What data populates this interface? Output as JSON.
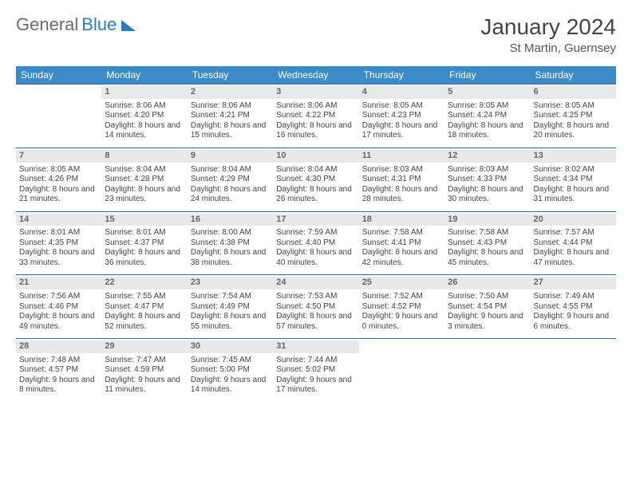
{
  "logo": {
    "text1": "General",
    "text2": "Blue"
  },
  "title": "January 2024",
  "location": "St Martin, Guernsey",
  "colors": {
    "header_bg": "#3b8bc9",
    "row_border": "#2a6ca8",
    "daynum_bg": "#e9e9e9",
    "logo_gray": "#6b6b6b",
    "logo_blue": "#2a7bbf"
  },
  "day_names": [
    "Sunday",
    "Monday",
    "Tuesday",
    "Wednesday",
    "Thursday",
    "Friday",
    "Saturday"
  ],
  "weeks": [
    [
      {
        "day": "",
        "sunrise": "",
        "sunset": "",
        "daylight": ""
      },
      {
        "day": "1",
        "sunrise": "Sunrise: 8:06 AM",
        "sunset": "Sunset: 4:20 PM",
        "daylight": "Daylight: 8 hours and 14 minutes."
      },
      {
        "day": "2",
        "sunrise": "Sunrise: 8:06 AM",
        "sunset": "Sunset: 4:21 PM",
        "daylight": "Daylight: 8 hours and 15 minutes."
      },
      {
        "day": "3",
        "sunrise": "Sunrise: 8:06 AM",
        "sunset": "Sunset: 4:22 PM",
        "daylight": "Daylight: 8 hours and 16 minutes."
      },
      {
        "day": "4",
        "sunrise": "Sunrise: 8:05 AM",
        "sunset": "Sunset: 4:23 PM",
        "daylight": "Daylight: 8 hours and 17 minutes."
      },
      {
        "day": "5",
        "sunrise": "Sunrise: 8:05 AM",
        "sunset": "Sunset: 4:24 PM",
        "daylight": "Daylight: 8 hours and 18 minutes."
      },
      {
        "day": "6",
        "sunrise": "Sunrise: 8:05 AM",
        "sunset": "Sunset: 4:25 PM",
        "daylight": "Daylight: 8 hours and 20 minutes."
      }
    ],
    [
      {
        "day": "7",
        "sunrise": "Sunrise: 8:05 AM",
        "sunset": "Sunset: 4:26 PM",
        "daylight": "Daylight: 8 hours and 21 minutes."
      },
      {
        "day": "8",
        "sunrise": "Sunrise: 8:04 AM",
        "sunset": "Sunset: 4:28 PM",
        "daylight": "Daylight: 8 hours and 23 minutes."
      },
      {
        "day": "9",
        "sunrise": "Sunrise: 8:04 AM",
        "sunset": "Sunset: 4:29 PM",
        "daylight": "Daylight: 8 hours and 24 minutes."
      },
      {
        "day": "10",
        "sunrise": "Sunrise: 8:04 AM",
        "sunset": "Sunset: 4:30 PM",
        "daylight": "Daylight: 8 hours and 26 minutes."
      },
      {
        "day": "11",
        "sunrise": "Sunrise: 8:03 AM",
        "sunset": "Sunset: 4:31 PM",
        "daylight": "Daylight: 8 hours and 28 minutes."
      },
      {
        "day": "12",
        "sunrise": "Sunrise: 8:03 AM",
        "sunset": "Sunset: 4:33 PM",
        "daylight": "Daylight: 8 hours and 30 minutes."
      },
      {
        "day": "13",
        "sunrise": "Sunrise: 8:02 AM",
        "sunset": "Sunset: 4:34 PM",
        "daylight": "Daylight: 8 hours and 31 minutes."
      }
    ],
    [
      {
        "day": "14",
        "sunrise": "Sunrise: 8:01 AM",
        "sunset": "Sunset: 4:35 PM",
        "daylight": "Daylight: 8 hours and 33 minutes."
      },
      {
        "day": "15",
        "sunrise": "Sunrise: 8:01 AM",
        "sunset": "Sunset: 4:37 PM",
        "daylight": "Daylight: 8 hours and 36 minutes."
      },
      {
        "day": "16",
        "sunrise": "Sunrise: 8:00 AM",
        "sunset": "Sunset: 4:38 PM",
        "daylight": "Daylight: 8 hours and 38 minutes."
      },
      {
        "day": "17",
        "sunrise": "Sunrise: 7:59 AM",
        "sunset": "Sunset: 4:40 PM",
        "daylight": "Daylight: 8 hours and 40 minutes."
      },
      {
        "day": "18",
        "sunrise": "Sunrise: 7:58 AM",
        "sunset": "Sunset: 4:41 PM",
        "daylight": "Daylight: 8 hours and 42 minutes."
      },
      {
        "day": "19",
        "sunrise": "Sunrise: 7:58 AM",
        "sunset": "Sunset: 4:43 PM",
        "daylight": "Daylight: 8 hours and 45 minutes."
      },
      {
        "day": "20",
        "sunrise": "Sunrise: 7:57 AM",
        "sunset": "Sunset: 4:44 PM",
        "daylight": "Daylight: 8 hours and 47 minutes."
      }
    ],
    [
      {
        "day": "21",
        "sunrise": "Sunrise: 7:56 AM",
        "sunset": "Sunset: 4:46 PM",
        "daylight": "Daylight: 8 hours and 49 minutes."
      },
      {
        "day": "22",
        "sunrise": "Sunrise: 7:55 AM",
        "sunset": "Sunset: 4:47 PM",
        "daylight": "Daylight: 8 hours and 52 minutes."
      },
      {
        "day": "23",
        "sunrise": "Sunrise: 7:54 AM",
        "sunset": "Sunset: 4:49 PM",
        "daylight": "Daylight: 8 hours and 55 minutes."
      },
      {
        "day": "24",
        "sunrise": "Sunrise: 7:53 AM",
        "sunset": "Sunset: 4:50 PM",
        "daylight": "Daylight: 8 hours and 57 minutes."
      },
      {
        "day": "25",
        "sunrise": "Sunrise: 7:52 AM",
        "sunset": "Sunset: 4:52 PM",
        "daylight": "Daylight: 9 hours and 0 minutes."
      },
      {
        "day": "26",
        "sunrise": "Sunrise: 7:50 AM",
        "sunset": "Sunset: 4:54 PM",
        "daylight": "Daylight: 9 hours and 3 minutes."
      },
      {
        "day": "27",
        "sunrise": "Sunrise: 7:49 AM",
        "sunset": "Sunset: 4:55 PM",
        "daylight": "Daylight: 9 hours and 6 minutes."
      }
    ],
    [
      {
        "day": "28",
        "sunrise": "Sunrise: 7:48 AM",
        "sunset": "Sunset: 4:57 PM",
        "daylight": "Daylight: 9 hours and 8 minutes."
      },
      {
        "day": "29",
        "sunrise": "Sunrise: 7:47 AM",
        "sunset": "Sunset: 4:59 PM",
        "daylight": "Daylight: 9 hours and 11 minutes."
      },
      {
        "day": "30",
        "sunrise": "Sunrise: 7:45 AM",
        "sunset": "Sunset: 5:00 PM",
        "daylight": "Daylight: 9 hours and 14 minutes."
      },
      {
        "day": "31",
        "sunrise": "Sunrise: 7:44 AM",
        "sunset": "Sunset: 5:02 PM",
        "daylight": "Daylight: 9 hours and 17 minutes."
      },
      {
        "day": "",
        "sunrise": "",
        "sunset": "",
        "daylight": ""
      },
      {
        "day": "",
        "sunrise": "",
        "sunset": "",
        "daylight": ""
      },
      {
        "day": "",
        "sunrise": "",
        "sunset": "",
        "daylight": ""
      }
    ]
  ]
}
